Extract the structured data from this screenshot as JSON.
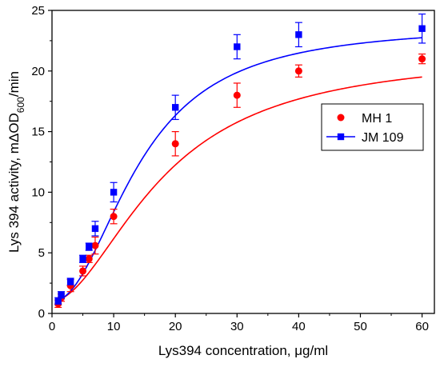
{
  "chart_data": {
    "type": "scatter",
    "xlabel": "Lys394 concentration, μg/ml",
    "ylabel_parts": {
      "prefix": "Lys 394 activity, mΔOD",
      "subscript": "600",
      "suffix": "/min"
    },
    "xlim": [
      0,
      62
    ],
    "ylim": [
      0,
      25
    ],
    "x_ticks": [
      0,
      10,
      20,
      30,
      40,
      50,
      60
    ],
    "y_ticks": [
      0,
      5,
      10,
      15,
      20,
      25
    ],
    "legend_position": "right",
    "grid": false,
    "series": [
      {
        "name": "MH 1",
        "color": "#ff0000",
        "marker": "circle",
        "legend_line": false,
        "x": [
          1,
          1.5,
          3,
          5,
          6,
          7,
          10,
          20,
          30,
          40,
          60
        ],
        "y": [
          0.8,
          1.3,
          2.3,
          3.5,
          4.5,
          5.6,
          8.0,
          14.0,
          18.0,
          20.0,
          21.0
        ],
        "error": [
          0.3,
          0.3,
          0.5,
          0.4,
          0.3,
          0.7,
          0.6,
          1.0,
          1.0,
          0.5,
          0.4
        ],
        "fit": {
          "A": 1.0,
          "B": 21.5,
          "ec50": 18.0,
          "n": 1.85
        }
      },
      {
        "name": "JM 109",
        "color": "#0000ff",
        "marker": "square",
        "legend_line": true,
        "x": [
          1,
          1.5,
          3,
          5,
          6,
          7,
          10,
          20,
          30,
          40,
          60
        ],
        "y": [
          1.0,
          1.5,
          2.6,
          4.5,
          5.5,
          7.0,
          10.0,
          17.0,
          22.0,
          23.0,
          23.5
        ],
        "error": [
          0.3,
          0.3,
          0.3,
          0.3,
          0.3,
          0.6,
          0.8,
          1.0,
          1.0,
          1.0,
          1.2
        ],
        "fit": {
          "A": 1.0,
          "B": 23.8,
          "ec50": 14.2,
          "n": 2.1
        }
      }
    ]
  }
}
